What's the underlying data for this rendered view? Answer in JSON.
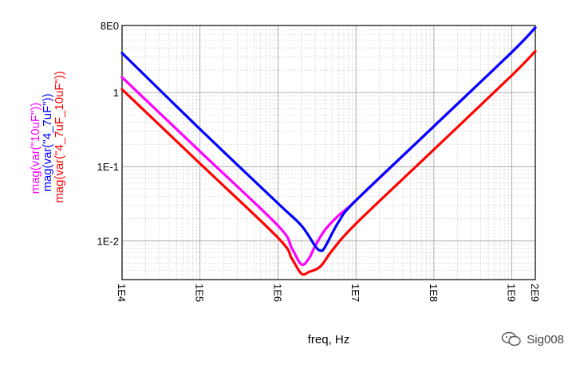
{
  "chart_data": {
    "type": "line",
    "xlabel": "freq, Hz",
    "x_scale": "log",
    "y_scale": "log",
    "xlim": [
      10000,
      2000000000
    ],
    "ylim": [
      0.003,
      8
    ],
    "x_ticks": [
      {
        "value": 10000,
        "label": "1E4"
      },
      {
        "value": 100000,
        "label": "1E5"
      },
      {
        "value": 1000000,
        "label": "1E6"
      },
      {
        "value": 10000000,
        "label": "1E7"
      },
      {
        "value": 100000000,
        "label": "1E8"
      },
      {
        "value": 1000000000,
        "label": "1E9"
      },
      {
        "value": 2000000000,
        "label": "2E9"
      }
    ],
    "y_ticks": [
      {
        "value": 8,
        "label": "8E0"
      },
      {
        "value": 1,
        "label": "1"
      },
      {
        "value": 0.1,
        "label": "1E-1"
      },
      {
        "value": 0.01,
        "label": "1E-2"
      }
    ],
    "grid": true,
    "legend_position": "left-vertical",
    "series": [
      {
        "name": "mag(var(\"10uF\"))",
        "color": "#ff00ff",
        "points": [
          [
            10000,
            1.6
          ],
          [
            100000,
            0.16
          ],
          [
            1000000,
            0.016
          ],
          [
            1500000,
            0.008
          ],
          [
            2000000,
            0.0048
          ],
          [
            2500000,
            0.0058
          ],
          [
            3000000,
            0.0085
          ],
          [
            4000000,
            0.014
          ],
          [
            6000000,
            0.022
          ],
          [
            10000000,
            0.035
          ],
          [
            100000000,
            0.35
          ],
          [
            1000000000,
            3.5
          ],
          [
            2000000000,
            7.5
          ]
        ]
      },
      {
        "name": "mag(var(\"4_7uF\"))",
        "color": "#0000ff",
        "points": [
          [
            10000,
            3.4
          ],
          [
            100000,
            0.32
          ],
          [
            1000000,
            0.032
          ],
          [
            2000000,
            0.016
          ],
          [
            3000000,
            0.0085
          ],
          [
            3500000,
            0.0074
          ],
          [
            4000000,
            0.0082
          ],
          [
            6000000,
            0.018
          ],
          [
            10000000,
            0.035
          ],
          [
            100000000,
            0.35
          ],
          [
            1000000000,
            3.5
          ],
          [
            2000000000,
            7.5
          ]
        ]
      },
      {
        "name": "mag(var(\"4_7uF_10uF\"))",
        "color": "#ff0000",
        "points": [
          [
            10000,
            1.1
          ],
          [
            100000,
            0.11
          ],
          [
            1000000,
            0.011
          ],
          [
            1500000,
            0.0058
          ],
          [
            2000000,
            0.0036
          ],
          [
            2500000,
            0.0038
          ],
          [
            3500000,
            0.0045
          ],
          [
            5000000,
            0.0075
          ],
          [
            10000000,
            0.017
          ],
          [
            100000000,
            0.17
          ],
          [
            1000000000,
            1.7
          ],
          [
            2000000000,
            3.6
          ]
        ]
      }
    ]
  },
  "watermark": {
    "text": "Sig008",
    "icon": "wechat-icon"
  }
}
